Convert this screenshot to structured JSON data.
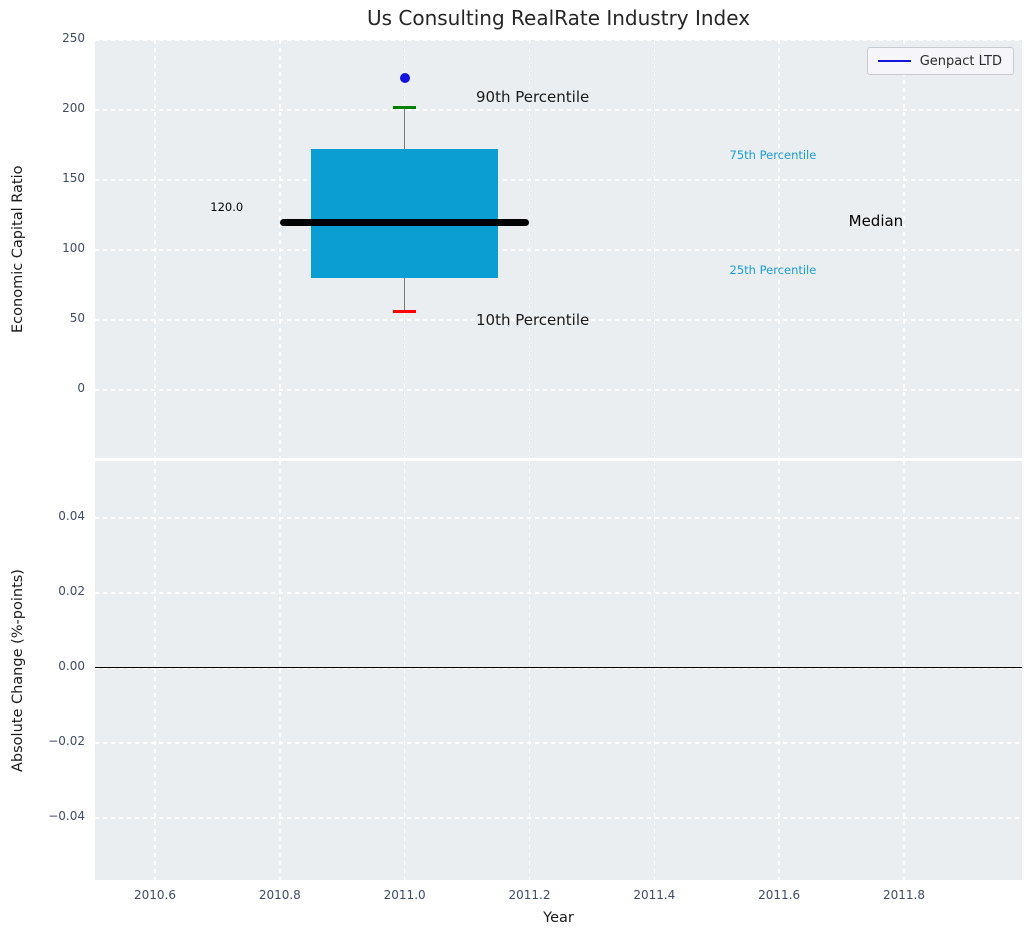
{
  "title": "Us Consulting RealRate Industry Index",
  "legend": {
    "label": "Genpact LTD",
    "line_color": "#1414dc"
  },
  "colors": {
    "axes_background": "#eaeef1",
    "grid": "#ffffff",
    "tick_label": "#3f4c66",
    "box_fill": "#0a9ed3",
    "median_line": "#000000",
    "whisker": "#7a7a7a",
    "cap_90th": "#008000",
    "cap_10th": "#ff0000",
    "company_marker": "#1414dc",
    "percentile_text": "#1b9ed2",
    "zero_line": "#000000"
  },
  "chart_data": [
    {
      "type": "boxplot",
      "title": "Us Consulting RealRate Industry Index",
      "ylabel": "Economic Capital Ratio",
      "ylim": [
        -48.6,
        251.4
      ],
      "xlim": [
        2010.49,
        2011.99
      ],
      "grid": "white-dashed",
      "yticks": [
        {
          "v": 250,
          "label": "250"
        },
        {
          "v": 200,
          "label": "200"
        },
        {
          "v": 150,
          "label": "150"
        },
        {
          "v": 100,
          "label": "100"
        },
        {
          "v": 50,
          "label": "50"
        },
        {
          "v": 0,
          "label": "0"
        }
      ],
      "box": {
        "x": 2011.0,
        "p10": 56,
        "q1": 80,
        "median": 120,
        "q3": 172,
        "p90": 202,
        "box_half_width": 0.15,
        "median_half_width": 0.2,
        "cap_half_width": 0.018,
        "median_label": "120.0"
      },
      "company_point": {
        "series": "Genpact LTD",
        "x": 2011.0,
        "y": 223
      },
      "annotations": [
        {
          "name": "median-value-label",
          "text": "120.0",
          "x": 2010.715,
          "y": 130.5,
          "color": "#000000",
          "size": 11.5
        },
        {
          "name": "p90-label",
          "text": "90th Percentile",
          "x": 2011.205,
          "y": 209,
          "color": "#1a1a1a",
          "size": 15
        },
        {
          "name": "p10-label",
          "text": "10th Percentile",
          "x": 2011.205,
          "y": 50,
          "color": "#1a1a1a",
          "size": 15
        },
        {
          "name": "p75-label",
          "text": "75th Percentile",
          "x": 2011.59,
          "y": 168,
          "color": "#1b9ed2",
          "size": 11.5
        },
        {
          "name": "p25-label",
          "text": "25th Percentile",
          "x": 2011.59,
          "y": 86,
          "color": "#1b9ed2",
          "size": 11.5
        },
        {
          "name": "median-label",
          "text": "Median",
          "x": 2011.755,
          "y": 121,
          "color": "#000000",
          "size": 15
        }
      ]
    },
    {
      "type": "line",
      "ylabel": "Absolute Change (%-points)",
      "xlabel": "Year",
      "ylim": [
        -0.0565,
        0.0555
      ],
      "xlim": [
        2010.49,
        2011.99
      ],
      "grid": "white-dashed",
      "yticks": [
        {
          "v": 0.04,
          "label": "0.04"
        },
        {
          "v": 0.02,
          "label": "0.02"
        },
        {
          "v": 0.0,
          "label": "0.00"
        },
        {
          "v": -0.02,
          "label": "−0.02"
        },
        {
          "v": -0.04,
          "label": "−0.04"
        }
      ],
      "xticks": [
        {
          "v": 2010.6,
          "label": "2010.6"
        },
        {
          "v": 2010.8,
          "label": "2010.8"
        },
        {
          "v": 2011.0,
          "label": "2011.0"
        },
        {
          "v": 2011.2,
          "label": "2011.2"
        },
        {
          "v": 2011.4,
          "label": "2011.4"
        },
        {
          "v": 2011.6,
          "label": "2011.6"
        },
        {
          "v": 2011.8,
          "label": "2011.8"
        }
      ],
      "zero_line_y": 0.0,
      "series": []
    }
  ]
}
